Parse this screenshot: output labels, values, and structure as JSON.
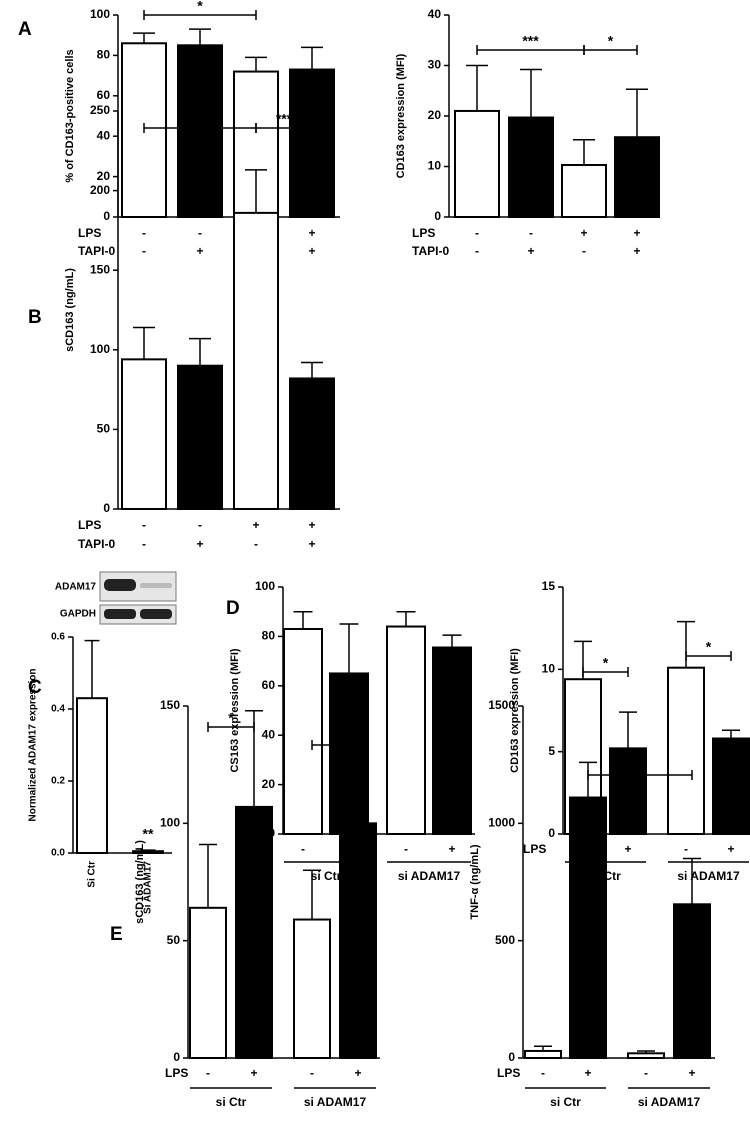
{
  "chart_data": [
    {
      "type": "bar",
      "panel": "A",
      "ylabel": "% of CD163-positive cells",
      "ylim": [
        0,
        100
      ],
      "yticks": [
        0,
        20,
        40,
        60,
        80,
        100
      ],
      "values": [
        86,
        85,
        72,
        73
      ],
      "errors": [
        5,
        8,
        7,
        11
      ],
      "colors": [
        "#ffffff",
        "#000000",
        "#ffffff",
        "#000000"
      ],
      "conditions": [
        {
          "name": "LPS",
          "values": [
            "-",
            "-",
            "+",
            "+"
          ]
        },
        {
          "name": "TAPI-0",
          "values": [
            "-",
            "+",
            "-",
            "+"
          ]
        }
      ],
      "annotations": [
        "*"
      ]
    },
    {
      "type": "bar",
      "ylabel": "CD163 expression (MFI)",
      "ylim": [
        0,
        40
      ],
      "yticks": [
        0,
        10,
        20,
        30,
        40
      ],
      "values": [
        21,
        19.7,
        10.3,
        15.8
      ],
      "errors": [
        9,
        9.5,
        5,
        9.5
      ],
      "colors": [
        "#ffffff",
        "#000000",
        "#ffffff",
        "#000000"
      ],
      "conditions": [
        {
          "name": "LPS",
          "values": [
            "-",
            "-",
            "+",
            "+"
          ]
        },
        {
          "name": "TAPI-0",
          "values": [
            "-",
            "+",
            "-",
            "+"
          ]
        }
      ],
      "annotations": [
        "***",
        "*"
      ]
    },
    {
      "type": "bar",
      "panel": "B",
      "ylabel": "sCD163 (ng/mL)",
      "ylim": [
        0,
        250
      ],
      "yticks": [
        0,
        50,
        100,
        150,
        200,
        250
      ],
      "values": [
        94,
        90,
        186,
        82
      ],
      "errors": [
        20,
        17,
        27,
        10
      ],
      "colors": [
        "#ffffff",
        "#000000",
        "#ffffff",
        "#000000"
      ],
      "conditions": [
        {
          "name": "LPS",
          "values": [
            "-",
            "-",
            "+",
            "+"
          ]
        },
        {
          "name": "TAPI-0",
          "values": [
            "-",
            "+",
            "-",
            "+"
          ]
        }
      ],
      "annotations": [
        "***",
        "***"
      ]
    },
    {
      "type": "bar",
      "panel": "C",
      "ylabel": "Normalized ADAM17 expression",
      "ylim": [
        0,
        0.6
      ],
      "yticks": [
        {
          "value": 0,
          "label": "0.0"
        },
        0.2,
        0.4,
        0.6
      ],
      "categories": [
        "Si Ctr",
        "Si ADAM17"
      ],
      "values": [
        0.43,
        0.005
      ],
      "errors": [
        0.16,
        0.003
      ],
      "colors": [
        "#ffffff",
        "#ffffff"
      ],
      "blot_labels": [
        "ADAM17",
        "GAPDH"
      ],
      "annotations": [
        "**"
      ]
    },
    {
      "type": "bar",
      "panel": "D",
      "ylabel": "CS163 expression (MFI)",
      "ylim": [
        0,
        100
      ],
      "yticks": [
        0,
        20,
        40,
        60,
        80,
        100
      ],
      "values": [
        83,
        65,
        84,
        75.5
      ],
      "errors": [
        7,
        20,
        6,
        5
      ],
      "colors": [
        "#ffffff",
        "#000000",
        "#ffffff",
        "#000000"
      ],
      "conditions": [
        {
          "name": "LPS",
          "values": [
            "-",
            "+",
            "-",
            "+"
          ]
        }
      ],
      "groups": [
        "si Ctr",
        "si ADAM17"
      ]
    },
    {
      "type": "bar",
      "ylabel": "CD163 expression (MFI)",
      "ylim": [
        0,
        15
      ],
      "yticks": [
        0,
        5,
        10,
        15
      ],
      "values": [
        9.4,
        5.2,
        10.1,
        5.8
      ],
      "errors": [
        2.3,
        2.2,
        2.8,
        0.5
      ],
      "colors": [
        "#ffffff",
        "#000000",
        "#ffffff",
        "#000000"
      ],
      "conditions": [
        {
          "name": "LPS",
          "values": [
            "-",
            "+",
            "-",
            "+"
          ]
        }
      ],
      "groups": [
        "si Ctr",
        "si ADAM17"
      ],
      "annotations": [
        "*",
        "*"
      ]
    },
    {
      "type": "bar",
      "panel": "E",
      "ylabel": "sCD163 (ng/mL)",
      "ylim": [
        0,
        150
      ],
      "yticks": [
        0,
        50,
        100,
        150
      ],
      "values": [
        64,
        107,
        59,
        100
      ],
      "errors": [
        27,
        41,
        21,
        29
      ],
      "colors": [
        "#ffffff",
        "#000000",
        "#ffffff",
        "#000000"
      ],
      "conditions": [
        {
          "name": "LPS",
          "values": [
            "-",
            "+",
            "-",
            "+"
          ]
        }
      ],
      "groups": [
        "si Ctr",
        "si ADAM17"
      ],
      "annotations": [
        "*",
        "*"
      ]
    },
    {
      "type": "bar",
      "ylabel": "TNF-α (ng/mL)",
      "ylim": [
        0,
        1500
      ],
      "yticks": [
        0,
        500,
        1000,
        1500
      ],
      "values": [
        30,
        1110,
        20,
        655
      ],
      "errors": [
        20,
        150,
        10,
        195
      ],
      "colors": [
        "#ffffff",
        "#000000",
        "#ffffff",
        "#000000"
      ],
      "conditions": [
        {
          "name": "LPS",
          "values": [
            "-",
            "+",
            "-",
            "+"
          ]
        }
      ],
      "groups": [
        "si Ctr",
        "si ADAM17"
      ],
      "annotations": [
        "*"
      ]
    }
  ]
}
